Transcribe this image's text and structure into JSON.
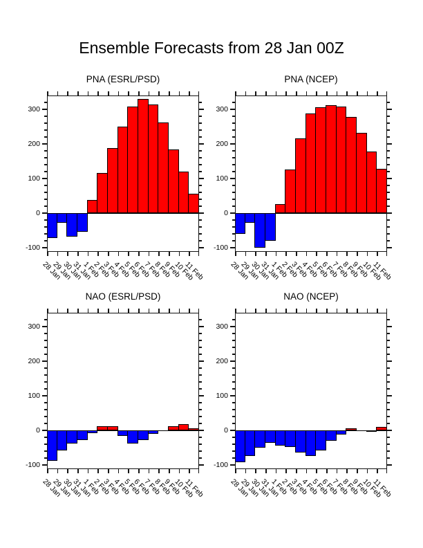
{
  "main_title": "Ensemble Forecasts from 28 Jan 00Z",
  "colors": {
    "positive_bar": "#FF0000",
    "negative_bar": "#0000FF",
    "axis": "#111111",
    "background": "#FFFFFF"
  },
  "chart_data": [
    {
      "type": "bar",
      "title": "PNA (ESRL/PSD)",
      "categories": [
        "28 Jan",
        "29 Jan",
        "30 Jan",
        "31 Jan",
        "1 Feb",
        "2 Feb",
        "3 Feb",
        "4 Feb",
        "5 Feb",
        "6 Feb",
        "7 Feb",
        "8 Feb",
        "9 Feb",
        "10 Feb",
        "11 Feb"
      ],
      "values": [
        -71,
        -28,
        -67,
        -54,
        39,
        116,
        188,
        250,
        308,
        331,
        314,
        262,
        184,
        120,
        56
      ],
      "xlabel": "",
      "ylabel": "",
      "ylim": [
        -112,
        340
      ],
      "yticks": [
        -100,
        0,
        100,
        200,
        300
      ],
      "minor_tick_interval": 20,
      "grid": false,
      "legend": "none"
    },
    {
      "type": "bar",
      "title": "PNA (NCEP)",
      "categories": [
        "28 Jan",
        "29 Jan",
        "30 Jan",
        "31 Jan",
        "1 Feb",
        "2 Feb",
        "3 Feb",
        "4 Feb",
        "5 Feb",
        "6 Feb",
        "7 Feb",
        "8 Feb",
        "9 Feb",
        "10 Feb",
        "11 Feb"
      ],
      "values": [
        -60,
        -28,
        -100,
        -80,
        27,
        126,
        216,
        289,
        306,
        313,
        308,
        279,
        232,
        179,
        129
      ],
      "xlabel": "",
      "ylabel": "",
      "ylim": [
        -112,
        340
      ],
      "yticks": [
        -100,
        0,
        100,
        200,
        300
      ],
      "minor_tick_interval": 20,
      "grid": false,
      "legend": "none"
    },
    {
      "type": "bar",
      "title": "NAO (ESRL/PSD)",
      "categories": [
        "28 Jan",
        "29 Jan",
        "30 Jan",
        "31 Jan",
        "1 Feb",
        "2 Feb",
        "3 Feb",
        "4 Feb",
        "5 Feb",
        "6 Feb",
        "7 Feb",
        "8 Feb",
        "9 Feb",
        "10 Feb",
        "11 Feb"
      ],
      "values": [
        -88,
        -57,
        -37,
        -27,
        -8,
        13,
        13,
        -15,
        -38,
        -28,
        -10,
        0,
        12,
        18,
        6
      ],
      "xlabel": "",
      "ylabel": "",
      "ylim": [
        -112,
        340
      ],
      "yticks": [
        -100,
        0,
        100,
        200,
        300
      ],
      "minor_tick_interval": 20,
      "grid": false,
      "legend": "none"
    },
    {
      "type": "bar",
      "title": "NAO (NCEP)",
      "categories": [
        "28 Jan",
        "29 Jan",
        "30 Jan",
        "31 Jan",
        "1 Feb",
        "2 Feb",
        "3 Feb",
        "4 Feb",
        "5 Feb",
        "6 Feb",
        "7 Feb",
        "8 Feb",
        "9 Feb",
        "10 Feb",
        "11 Feb"
      ],
      "values": [
        -92,
        -73,
        -50,
        -35,
        -43,
        -47,
        -64,
        -74,
        -58,
        -30,
        -11,
        7,
        0,
        1,
        10
      ],
      "xlabel": "",
      "ylabel": "",
      "ylim": [
        -112,
        340
      ],
      "yticks": [
        -100,
        0,
        100,
        200,
        300
      ],
      "minor_tick_interval": 20,
      "grid": false,
      "legend": "none"
    }
  ]
}
